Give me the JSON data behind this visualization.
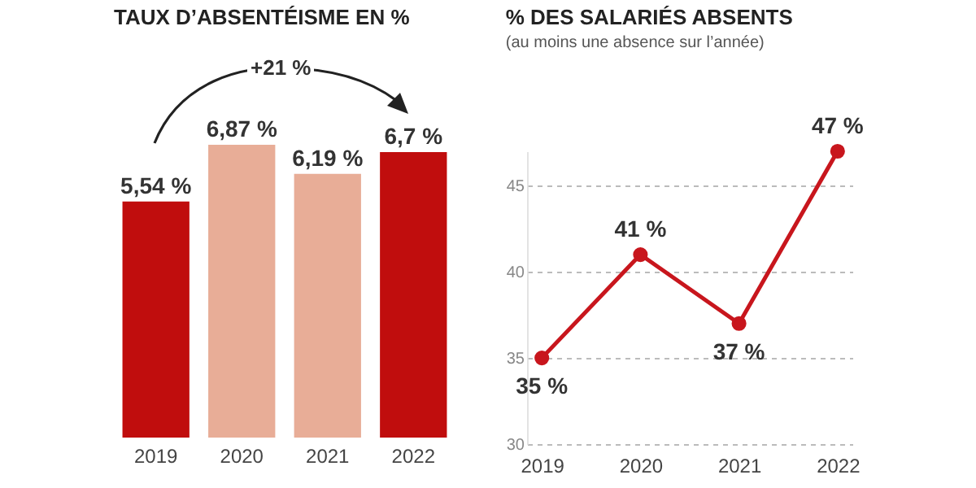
{
  "chart_data": [
    {
      "type": "bar",
      "title": "TAUX D’ABSENTÉISME EN %",
      "categories": [
        "2019",
        "2020",
        "2021",
        "2022"
      ],
      "values": [
        5.54,
        6.87,
        6.19,
        6.7
      ],
      "colors": [
        "#c00d0d",
        "#e8ad97",
        "#e8ad97",
        "#c00d0d"
      ],
      "value_labels": [
        "5,54 %",
        "6,87 %",
        "6,19 %",
        "6,7 %"
      ],
      "annotations": [
        "+21 %"
      ]
    },
    {
      "type": "line",
      "title": "% DES SALARIÉS ABSENTS",
      "subtitle": "(au moins une absence sur l’année)",
      "categories": [
        "2019",
        "2020",
        "2021",
        "2022"
      ],
      "series": [
        {
          "color": "#c8161d",
          "values": [
            35,
            41,
            37,
            47
          ],
          "value_labels": [
            "35 %",
            "41 %",
            "37 %",
            "47 %"
          ]
        }
      ],
      "ylim": [
        30,
        47
      ],
      "yticks": [
        30,
        35,
        40,
        45
      ],
      "grid": "y",
      "marker": "circle",
      "line_style": "solid"
    }
  ]
}
